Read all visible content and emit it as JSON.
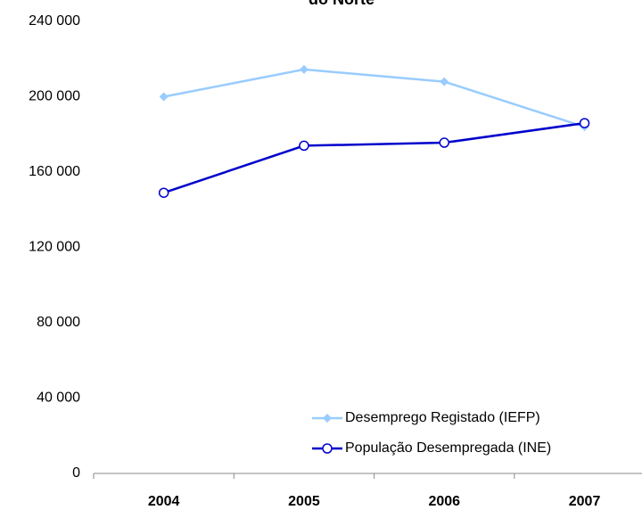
{
  "chart_data": {
    "type": "line",
    "title": "do Norte",
    "categories": [
      "2004",
      "2005",
      "2006",
      "2007"
    ],
    "series": [
      {
        "name": "Desemprego Registado (IEFP)",
        "color": "#99ccff",
        "marker": "diamond",
        "values": [
          200000,
          214500,
          208000,
          184000
        ]
      },
      {
        "name": "População Desempregada (INE)",
        "color": "#0000cc",
        "marker": "circle",
        "values": [
          149000,
          174000,
          175600,
          186000
        ]
      }
    ],
    "ylim": [
      0,
      240000
    ],
    "yticks": [
      {
        "value": 0,
        "label": "0"
      },
      {
        "value": 40000,
        "label": "40 000"
      },
      {
        "value": 80000,
        "label": "80 000"
      },
      {
        "value": 120000,
        "label": "120 000"
      },
      {
        "value": 160000,
        "label": "160 000"
      },
      {
        "value": 200000,
        "label": "200 000"
      },
      {
        "value": 240000,
        "label": "240 000"
      }
    ],
    "grid": false,
    "legend": "lower right"
  }
}
